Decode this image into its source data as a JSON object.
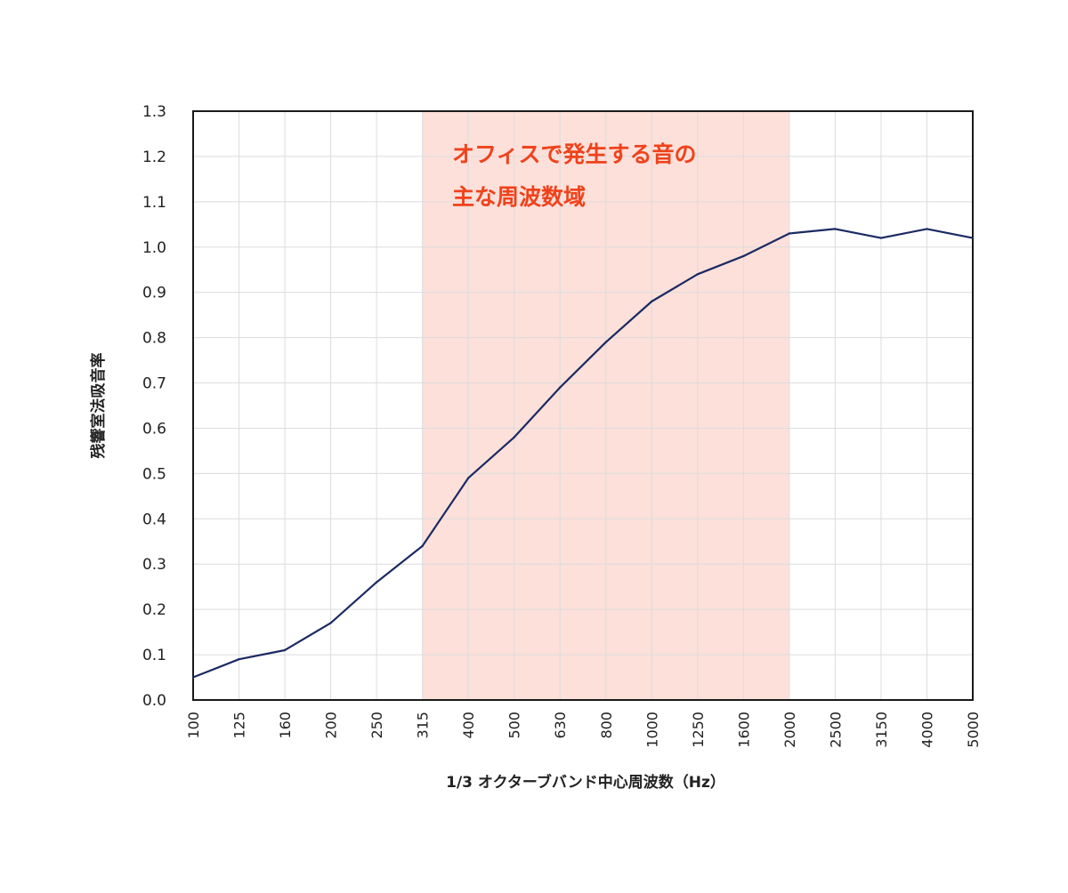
{
  "chart_data": {
    "type": "line",
    "categories": [
      "100",
      "125",
      "160",
      "200",
      "250",
      "315",
      "400",
      "500",
      "630",
      "800",
      "1000",
      "1250",
      "1600",
      "2000",
      "2500",
      "3150",
      "4000",
      "5000"
    ],
    "series": [
      {
        "values": [
          0.05,
          0.09,
          0.11,
          0.17,
          0.26,
          0.34,
          0.49,
          0.58,
          0.69,
          0.79,
          0.88,
          0.94,
          0.98,
          1.03,
          1.04,
          1.02,
          1.04,
          1.02
        ],
        "color": "#1b2a63"
      }
    ],
    "ylim": [
      0,
      1.3
    ],
    "yticks": [
      "0.0",
      "0.1",
      "0.2",
      "0.3",
      "0.4",
      "0.5",
      "0.6",
      "0.7",
      "0.8",
      "0.9",
      "1.0",
      "1.1",
      "1.2",
      "1.3"
    ],
    "xlabel": "1/3 オクターブバンド中心周波数（Hz）",
    "ylabel": "残響室法吸音率",
    "grid": true,
    "highlight": {
      "from": "315",
      "to": "2000",
      "color": "#fde0da",
      "label_lines": [
        "オフィスで発生する音の",
        "主な周波数域"
      ],
      "label_color": "#f0421c"
    }
  }
}
